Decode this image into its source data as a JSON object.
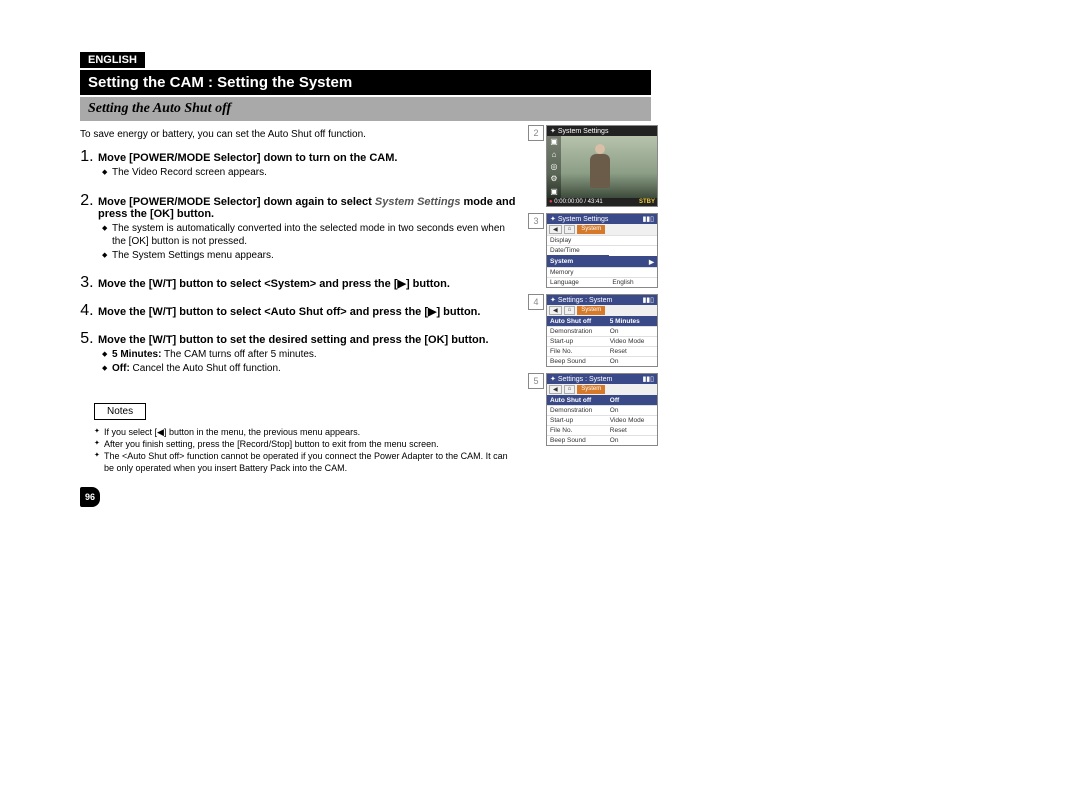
{
  "lang": "ENGLISH",
  "title": "Setting the CAM : Setting the System",
  "subtitle": "Setting the Auto Shut off",
  "intro": "To save energy or battery, you can set the Auto Shut off function.",
  "steps": [
    {
      "head": "Move [POWER/MODE Selector] down to turn on the CAM.",
      "subs": [
        "The Video Record screen appears."
      ]
    },
    {
      "head_a": "Move [POWER/MODE Selector] down again to select ",
      "head_mode": "System Settings",
      "head_b": " mode and press the [OK] button.",
      "subs": [
        "The system is automatically converted into the selected mode in two seconds even when the [OK] button is not pressed.",
        "The System Settings menu appears."
      ]
    },
    {
      "head": "Move the [W/T] button to select <System> and press the [▶] button."
    },
    {
      "head": "Move the [W/T] button to select <Auto Shut off> and press the [▶] button."
    },
    {
      "head": "Move the [W/T] button to set the desired setting and press the [OK] button.",
      "subs_kv": [
        {
          "k": "5 Minutes:",
          "v": " The CAM turns off after 5 minutes."
        },
        {
          "k": "Off:",
          "v": " Cancel the Auto Shut off function."
        }
      ]
    }
  ],
  "notes_label": "Notes",
  "notes": [
    "If you select [◀] button in the menu, the previous menu appears.",
    "After you finish setting, press the [Record/Stop] button to exit from the menu screen.",
    "The <Auto Shut off> function cannot be operated if you connect the Power Adapter to the CAM. It can be only operated when you insert Battery Pack into the CAM."
  ],
  "page_num": "96",
  "screens": {
    "s2": {
      "num": "2",
      "header_title": "System Settings",
      "icons": [
        "▣",
        "⌂",
        "◎",
        "⚙",
        "▣"
      ],
      "timer": "0:00:00:00 / 43:41",
      "rec_icon": "●",
      "stby": "STBY"
    },
    "s3": {
      "num": "3",
      "header_title": "System Settings",
      "tabs": [
        "◀",
        "⌂",
        "System"
      ],
      "rows": [
        {
          "label": "Display",
          "val": ""
        },
        {
          "label": "Date/Time",
          "val": ""
        },
        {
          "label": "System",
          "val": "▶",
          "sel": true
        },
        {
          "label": "Memory",
          "val": ""
        },
        {
          "label": "Language",
          "val": "English"
        }
      ]
    },
    "s4": {
      "num": "4",
      "header_title": "Settings : System",
      "tabs": [
        "◀",
        "⌂",
        "System"
      ],
      "rows": [
        {
          "label": "Auto Shut off",
          "val": "5 Minutes",
          "sel": true
        },
        {
          "label": "Demonstration",
          "val": "On"
        },
        {
          "label": "Start-up",
          "val": "Video Mode"
        },
        {
          "label": "File No.",
          "val": "Reset"
        },
        {
          "label": "Beep Sound",
          "val": "On"
        }
      ]
    },
    "s5": {
      "num": "5",
      "header_title": "Settings : System",
      "tabs": [
        "◀",
        "⌂",
        "System"
      ],
      "rows": [
        {
          "label": "Auto Shut off",
          "val": "Off",
          "sel": true
        },
        {
          "label": "Demonstration",
          "val": "On"
        },
        {
          "label": "Start-up",
          "val": "Video Mode"
        },
        {
          "label": "File No.",
          "val": "Reset"
        },
        {
          "label": "Beep Sound",
          "val": "On"
        }
      ]
    }
  }
}
